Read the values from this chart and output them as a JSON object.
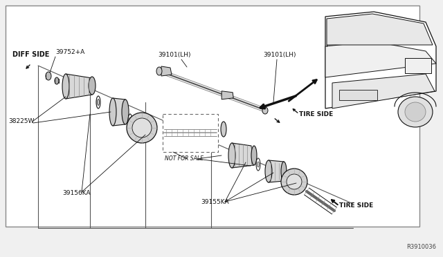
{
  "bg_color": "#ffffff",
  "outer_bg": "#f0f0f0",
  "border_color": "#888888",
  "line_color": "#111111",
  "gray1": "#cccccc",
  "gray2": "#aaaaaa",
  "gray3": "#dddddd",
  "ref_number": "R3910036",
  "labels": {
    "diff_side": "DIFF SIDE",
    "part1": "39752+A",
    "part2": "38225W",
    "part3": "39156KA",
    "part4a": "39101(LH)",
    "part4b": "39101(LH)",
    "part5": "NOT FOR SALE",
    "part6": "39155KA",
    "tire_side_top": "TIRE SIDE",
    "tire_side_bot": "TIRE SIDE"
  },
  "figsize": [
    6.4,
    3.72
  ],
  "dpi": 100
}
